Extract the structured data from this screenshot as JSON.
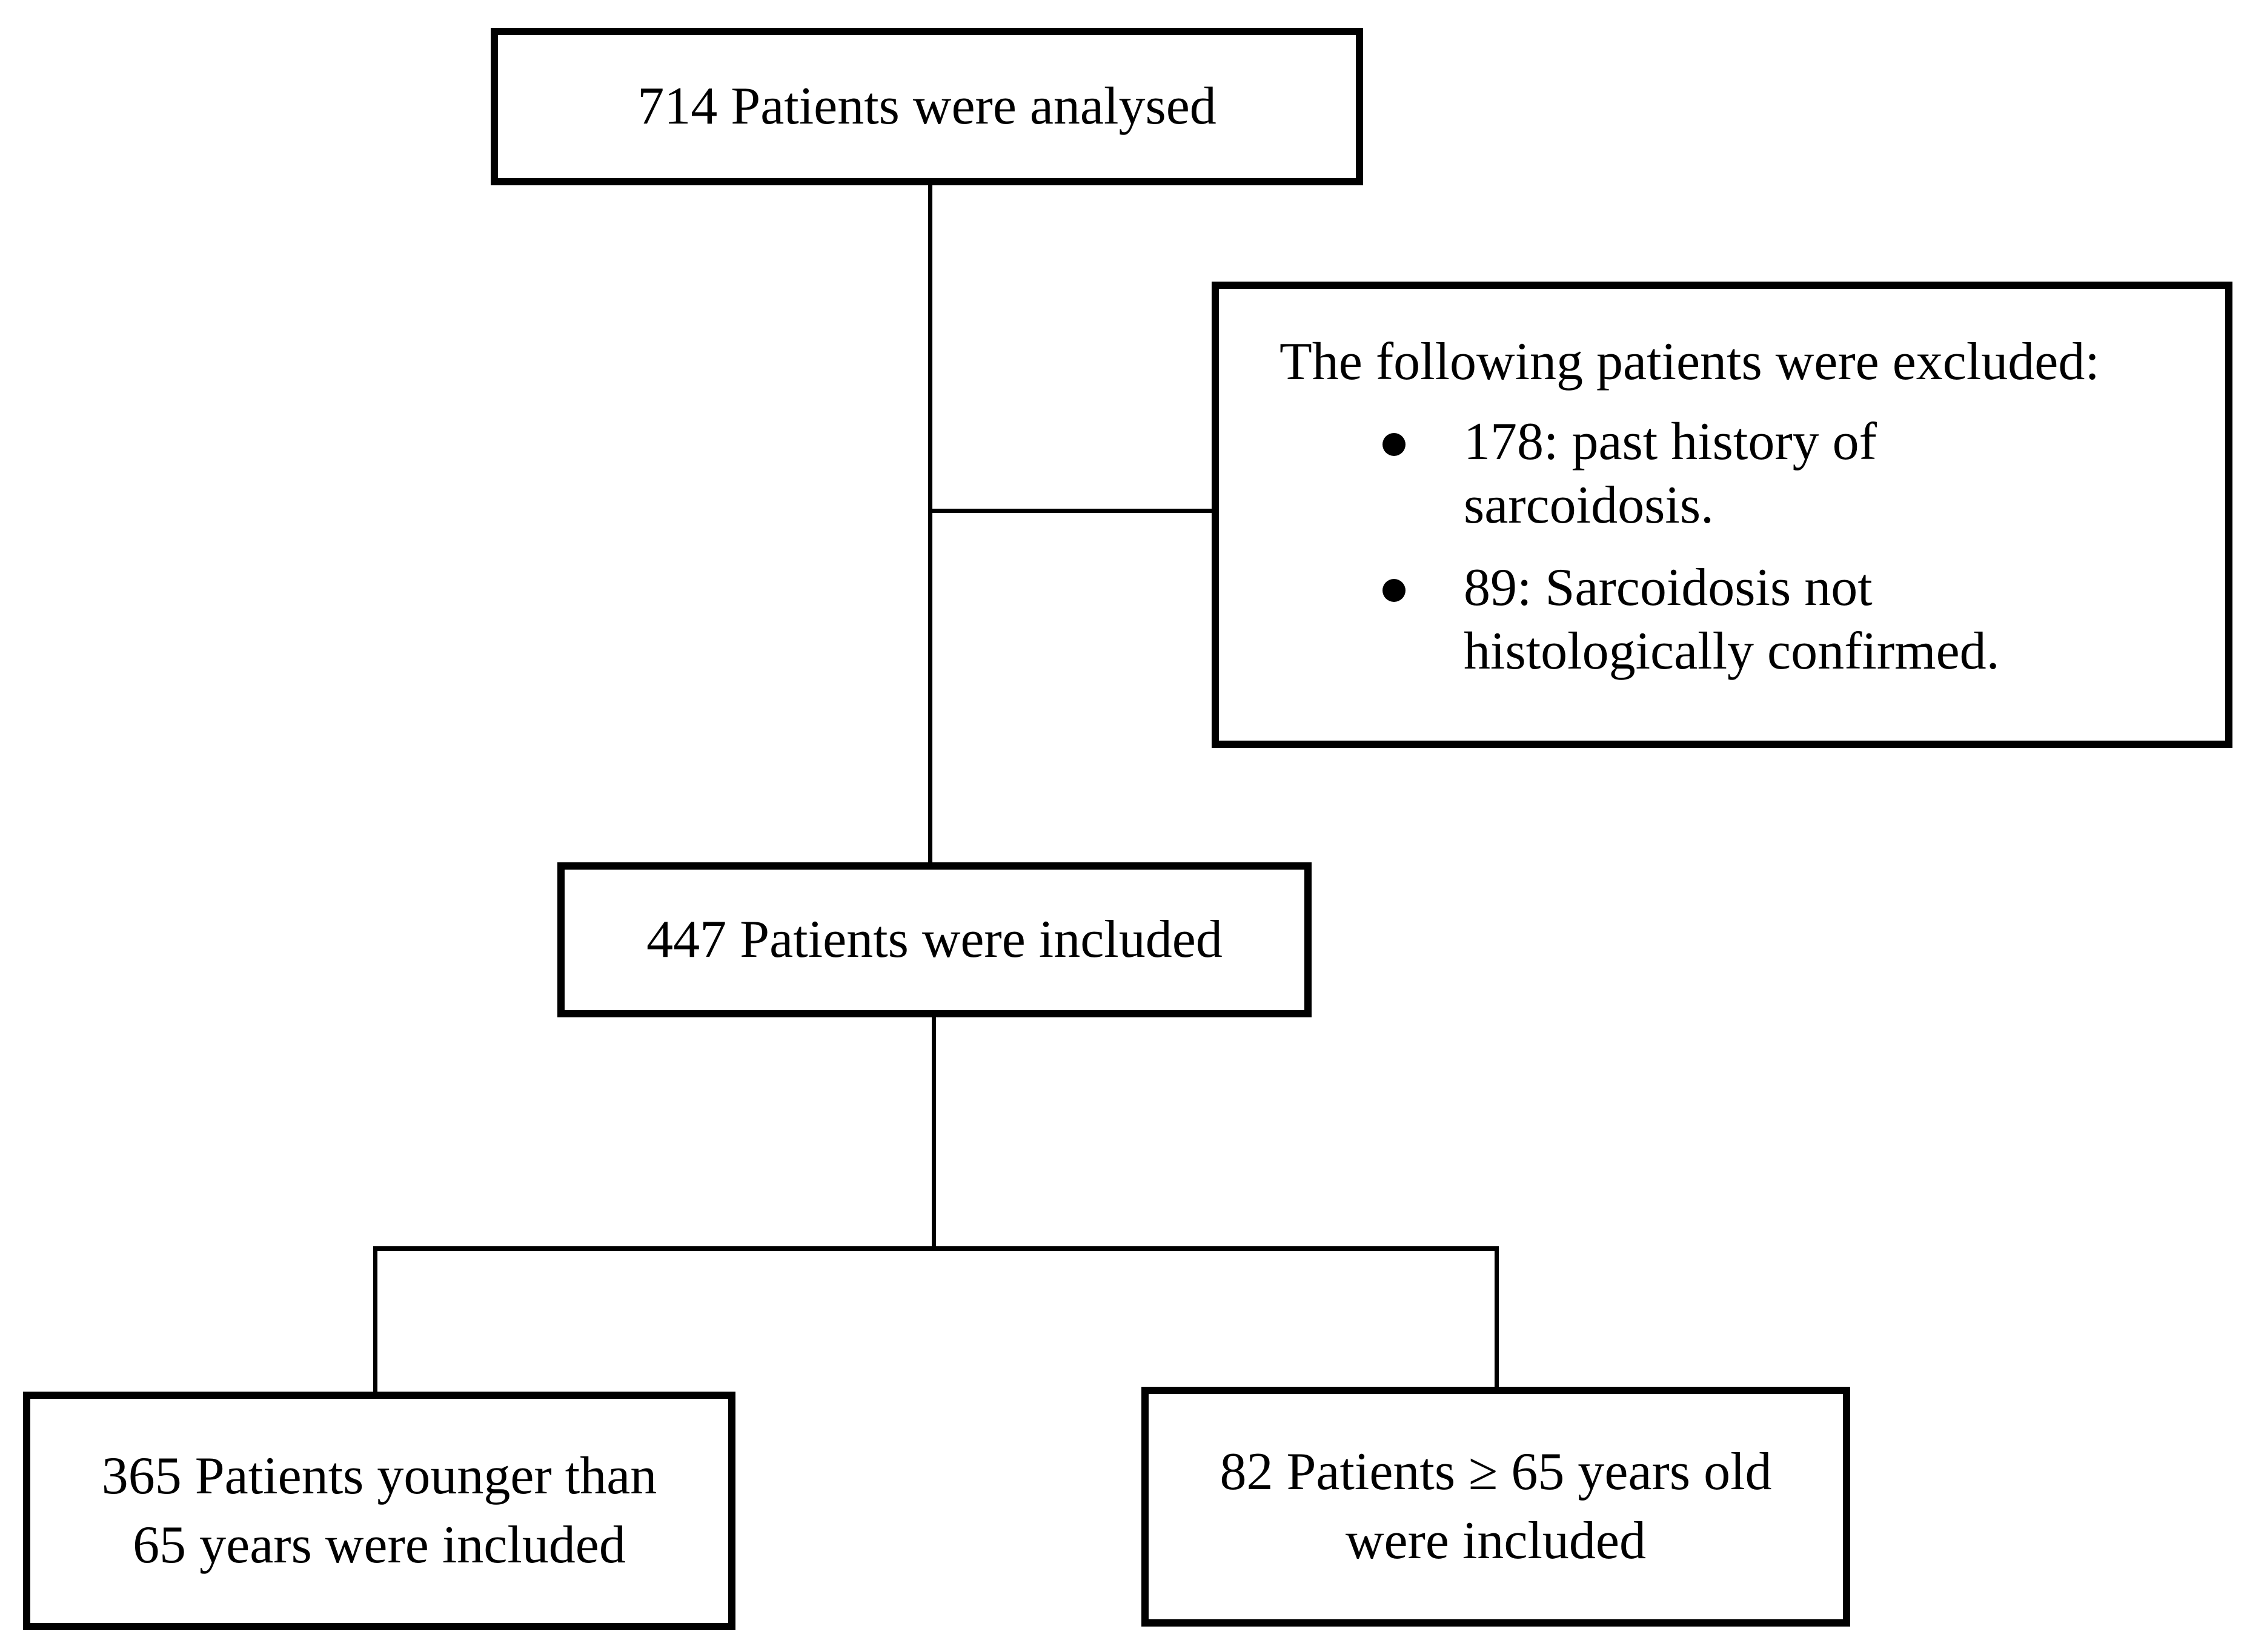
{
  "boxes": {
    "analysed": {
      "text": "714 Patients were analysed"
    },
    "excluded": {
      "heading": "The following patients were excluded:",
      "bullet_icon": "filled-circle-bullet",
      "items": [
        {
          "lines": [
            "178: past history of",
            "sarcoidosis."
          ]
        },
        {
          "lines": [
            "89: Sarcoidosis not",
            "histologically confirmed."
          ]
        }
      ]
    },
    "included": {
      "text": "447 Patients were included"
    },
    "younger": {
      "lines": [
        "365 Patients younger than",
        "65 years were included"
      ]
    },
    "older": {
      "lines": [
        "82 Patients ≥ 65 years old",
        "were included"
      ]
    }
  },
  "colors": {
    "background": "#ffffff",
    "border": "#000000",
    "text": "#000000",
    "connector": "#000000"
  }
}
